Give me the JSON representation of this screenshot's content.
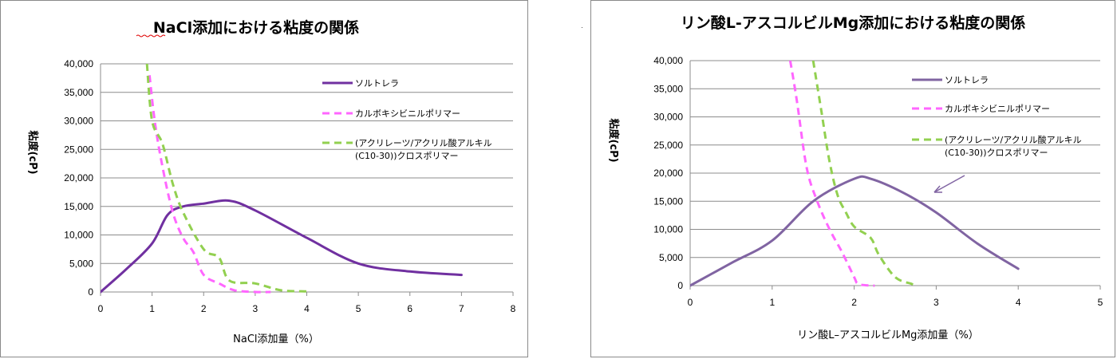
{
  "charts": [
    {
      "title": "NaCl添加における粘度の関係",
      "xlabel": "NaCl添加量（%）",
      "ylabel": "粘度(cP)",
      "colors": {
        "purple": "#7030a0",
        "pink": "#ff66ff",
        "green": "#92d050"
      },
      "legend": [
        {
          "lines": [
            "ソルトレラ"
          ],
          "style": "solid",
          "color": "#7030a0"
        },
        {
          "lines": [
            "カルボキシビニルポリマー"
          ],
          "style": "dashed",
          "color": "#ff66ff"
        },
        {
          "lines": [
            "(アクリレーツ/アクリル酸アルキル",
            "(C10-30))クロスポリマー"
          ],
          "style": "dashed",
          "color": "#92d050"
        }
      ]
    },
    {
      "title": "リン酸L-アスコルビルMg添加における粘度の関係",
      "xlabel": "リン酸L–アスコルビルMg添加量（%）",
      "ylabel": "粘度(cP)",
      "colors": {
        "purple": "#8064a2",
        "pink": "#ff66ff",
        "green": "#92d050"
      },
      "legend": [
        {
          "lines": [
            "ソルトレラ"
          ],
          "style": "solid",
          "color": "#8064a2"
        },
        {
          "lines": [
            "カルボキシビニルポリマー"
          ],
          "style": "dashed",
          "color": "#ff66ff"
        },
        {
          "lines": [
            "(アクリレーツ/アクリル酸アルキル",
            "(C10-30))クロスポリマー"
          ],
          "style": "dashed",
          "color": "#92d050"
        }
      ]
    }
  ],
  "chart_data": [
    {
      "type": "line",
      "xlim": [
        0,
        8
      ],
      "ylim": [
        0,
        40000
      ],
      "xticks": [
        "0",
        "1",
        "2",
        "3",
        "4",
        "5",
        "6",
        "7",
        "8"
      ],
      "yticks": [
        "0",
        "5,000",
        "10,000",
        "15,000",
        "20,000",
        "25,000",
        "30,000",
        "35,000",
        "40,000"
      ],
      "grid": true,
      "legend_position": "top-right",
      "series": [
        {
          "name": "ソルトレラ",
          "color": "#7030a0",
          "dash": false,
          "points": [
            [
              0,
              0
            ],
            [
              0.5,
              4000
            ],
            [
              1,
              8500
            ],
            [
              1.3,
              13500
            ],
            [
              1.6,
              15000
            ],
            [
              2,
              15500
            ],
            [
              2.5,
              16000
            ],
            [
              3,
              14300
            ],
            [
              4,
              9500
            ],
            [
              5,
              5000
            ],
            [
              6,
              3600
            ],
            [
              7,
              3000
            ]
          ]
        },
        {
          "name": "カルボキシビニルポリマー",
          "color": "#ff66ff",
          "dash": true,
          "points": [
            [
              0.95,
              38000
            ],
            [
              1.05,
              30000
            ],
            [
              1.2,
              22000
            ],
            [
              1.4,
              14000
            ],
            [
              1.6,
              9500
            ],
            [
              1.8,
              7000
            ],
            [
              2,
              3000
            ],
            [
              2.3,
              1500
            ],
            [
              2.6,
              300
            ],
            [
              3,
              0
            ],
            [
              3.3,
              0
            ]
          ]
        },
        {
          "name": "(アクリレーツ/アクリル酸アルキル(C10-30))クロスポリマー",
          "color": "#92d050",
          "dash": true,
          "points": [
            [
              0.9,
              40000
            ],
            [
              1,
              30000
            ],
            [
              1.2,
              26000
            ],
            [
              1.4,
              19000
            ],
            [
              1.6,
              14000
            ],
            [
              2,
              7500
            ],
            [
              2.3,
              6000
            ],
            [
              2.5,
              2000
            ],
            [
              3,
              1500
            ],
            [
              3.5,
              300
            ],
            [
              4,
              100
            ]
          ]
        }
      ]
    },
    {
      "type": "line",
      "xlim": [
        0,
        5
      ],
      "ylim": [
        0,
        40000
      ],
      "xticks": [
        "0",
        "1",
        "2",
        "3",
        "4",
        "5"
      ],
      "yticks": [
        "0",
        "5,000",
        "10,000",
        "15,000",
        "20,000",
        "25,000",
        "30,000",
        "35,000",
        "40,000"
      ],
      "grid": true,
      "legend_position": "top-right",
      "series": [
        {
          "name": "ソルトレラ",
          "color": "#8064a2",
          "dash": false,
          "points": [
            [
              0,
              0
            ],
            [
              0.5,
              4000
            ],
            [
              1,
              8000
            ],
            [
              1.5,
              15000
            ],
            [
              2,
              19000
            ],
            [
              2.2,
              19000
            ],
            [
              2.6,
              16500
            ],
            [
              3,
              13000
            ],
            [
              3.5,
              7500
            ],
            [
              4,
              3000
            ]
          ]
        },
        {
          "name": "カルボキシビニルポリマー",
          "color": "#ff66ff",
          "dash": true,
          "points": [
            [
              1.22,
              40000
            ],
            [
              1.3,
              33000
            ],
            [
              1.42,
              21000
            ],
            [
              1.55,
              15000
            ],
            [
              1.7,
              10000
            ],
            [
              1.85,
              6000
            ],
            [
              2,
              1500
            ],
            [
              2.05,
              300
            ],
            [
              2.2,
              0
            ],
            [
              2.25,
              0
            ]
          ]
        },
        {
          "name": "(アクリレーツ/アクリル酸アルキル(C10-30))クロスポリマー",
          "color": "#92d050",
          "dash": true,
          "points": [
            [
              1.5,
              40000
            ],
            [
              1.6,
              31000
            ],
            [
              1.7,
              22000
            ],
            [
              1.8,
              16000
            ],
            [
              1.9,
              13000
            ],
            [
              2,
              10500
            ],
            [
              2.2,
              8500
            ],
            [
              2.3,
              5500
            ],
            [
              2.5,
              1500
            ],
            [
              2.7,
              300
            ],
            [
              2.75,
              0
            ]
          ]
        }
      ]
    }
  ]
}
